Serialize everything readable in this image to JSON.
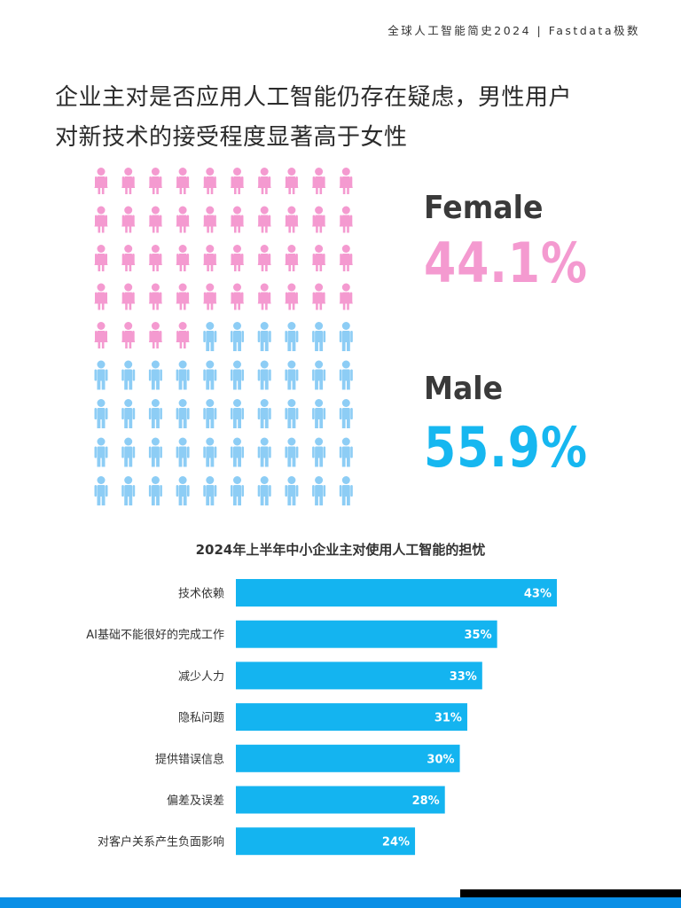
{
  "header": {
    "source": "全球人工智能简史2024 | Fastdata极数"
  },
  "headline": {
    "line1": "企业主对是否应用人工智能仍存在疑虑，男性用户",
    "line2": "对新技术的接受程度显著高于女性"
  },
  "gender": {
    "female_label": "Female",
    "female_value": "44.1%",
    "male_label": "Male",
    "male_value": "55.9%",
    "female_color": "#f49ad0",
    "male_color": "#8dcdf5",
    "female_icon_count": 44,
    "total_icons": 100
  },
  "chart_data": {
    "type": "bar",
    "orientation": "horizontal",
    "title": "2024年上半年中小企业主对使用人工智能的担忧",
    "categories": [
      "技术依赖",
      "AI基础不能很好的完成工作",
      "减少人力",
      "隐私问题",
      "提供错误信息",
      "偏差及误差",
      "对客户关系产生负面影响"
    ],
    "values": [
      43,
      35,
      33,
      31,
      30,
      28,
      24
    ],
    "data_labels": [
      "43%",
      "35%",
      "33%",
      "31%",
      "30%",
      "28%",
      "24%"
    ],
    "bar_color": "#14b4f0"
  }
}
